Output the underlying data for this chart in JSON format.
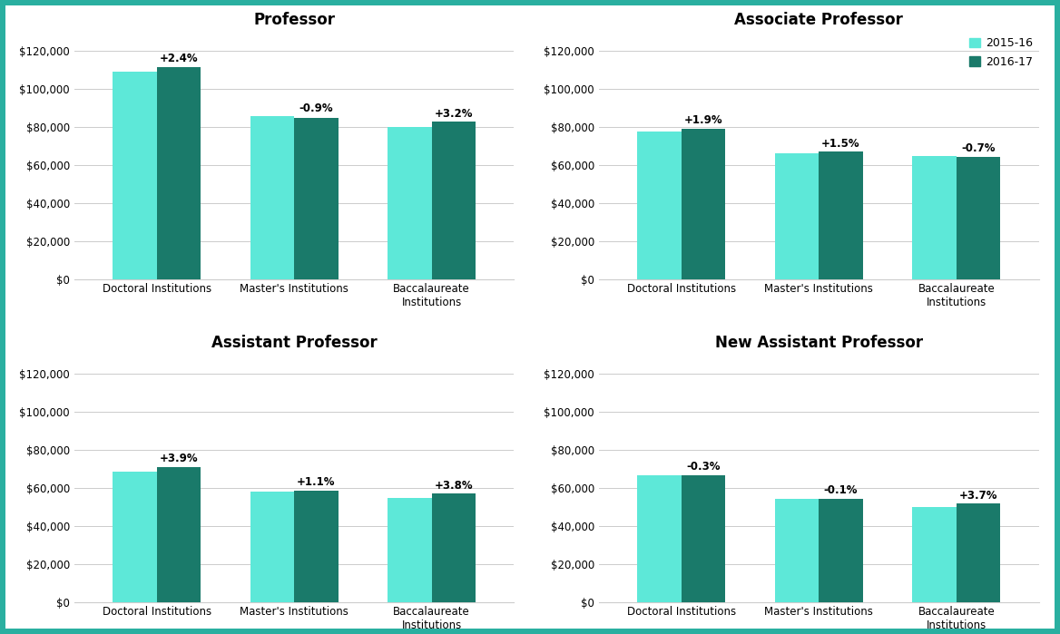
{
  "panels": [
    {
      "title": "Professor",
      "categories": [
        "Doctoral Institutions",
        "Master's Institutions",
        "Baccalaureate\nInstitutions"
      ],
      "values_2015": [
        109000,
        85500,
        80000
      ],
      "values_2016": [
        111500,
        84700,
        82560
      ],
      "pct_labels": [
        "+2.4%",
        "-0.9%",
        "+3.2%"
      ]
    },
    {
      "title": "Associate Professor",
      "categories": [
        "Doctoral Institutions",
        "Master's Institutions",
        "Baccalaureate\nInstitutions"
      ],
      "values_2015": [
        77500,
        66000,
        64500
      ],
      "values_2016": [
        79000,
        67000,
        64000
      ],
      "pct_labels": [
        "+1.9%",
        "+1.5%",
        "-0.7%"
      ]
    },
    {
      "title": "Assistant Professor",
      "categories": [
        "Doctoral Institutions",
        "Master's Institutions",
        "Baccalaureate\nInstitutions"
      ],
      "values_2015": [
        68500,
        58000,
        55000
      ],
      "values_2016": [
        71200,
        58700,
        57090
      ],
      "pct_labels": [
        "+3.9%",
        "+1.1%",
        "+3.8%"
      ]
    },
    {
      "title": "New Assistant Professor",
      "categories": [
        "Doctoral Institutions",
        "Master's Institutions",
        "Baccalaureate\nInstitutions"
      ],
      "values_2015": [
        67000,
        54500,
        50000
      ],
      "values_2016": [
        66800,
        54450,
        51850
      ],
      "pct_labels": [
        "-0.3%",
        "-0.1%",
        "+3.7%"
      ]
    }
  ],
  "color_2015": "#5DE8D8",
  "color_2016": "#1A7A6A",
  "ylim": [
    0,
    130000
  ],
  "yticks": [
    0,
    20000,
    40000,
    60000,
    80000,
    100000,
    120000
  ],
  "legend_labels": [
    "2015-16",
    "2016-17"
  ],
  "bar_width": 0.32,
  "background_color": "#FFFFFF",
  "border_color": "#2AAFA0",
  "border_width": 6,
  "grid_color": "#CCCCCC",
  "title_fontsize": 12,
  "label_fontsize": 8.5,
  "tick_fontsize": 8.5,
  "pct_fontsize": 8.5
}
